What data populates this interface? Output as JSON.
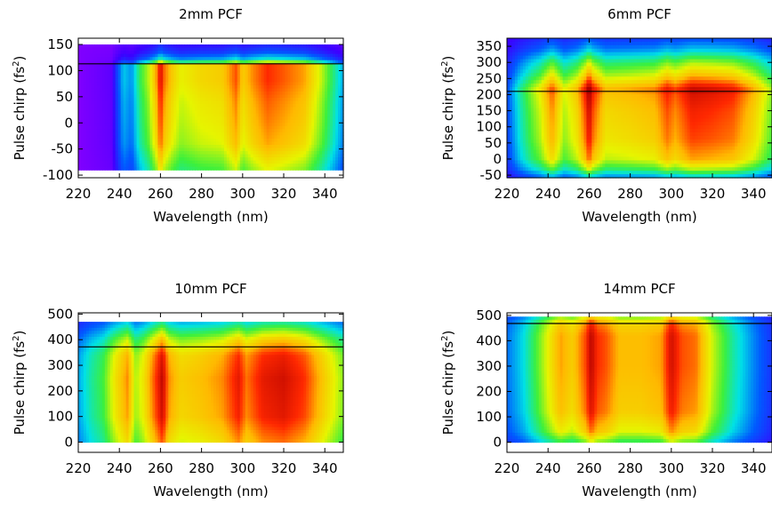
{
  "figure": {
    "background": "#ffffff"
  },
  "chart_data": [
    {
      "type": "heatmap",
      "title": "2mm PCF",
      "xlabel": "Wavelength (nm)",
      "ylabel_main": "Pulse chirp (fs",
      "ylabel_sup": "2",
      "ylabel_end": ")",
      "xlim": [
        220,
        349
      ],
      "ylim": [
        -105,
        162
      ],
      "data_yrange": [
        -90,
        150
      ],
      "x_ticks": [
        220,
        240,
        260,
        280,
        300,
        320,
        340
      ],
      "y_ticks": [
        -100,
        -50,
        0,
        50,
        100,
        150
      ],
      "reference_line_y": 113,
      "background_level": 0.02,
      "columns": [
        {
          "x": 220,
          "v": 0.02
        },
        {
          "x": 228,
          "v": 0.05
        },
        {
          "x": 236,
          "v": 0.08
        },
        {
          "x": 238,
          "v": 0.2
        },
        {
          "x": 242,
          "v": 0.38
        },
        {
          "x": 246,
          "v": 0.33
        },
        {
          "x": 250,
          "v": 0.5
        },
        {
          "x": 254,
          "v": 0.6
        },
        {
          "x": 258,
          "v": 0.78
        },
        {
          "x": 260,
          "v": 0.95
        },
        {
          "x": 262,
          "v": 0.82
        },
        {
          "x": 266,
          "v": 0.72
        },
        {
          "x": 270,
          "v": 0.65
        },
        {
          "x": 280,
          "v": 0.7
        },
        {
          "x": 290,
          "v": 0.72
        },
        {
          "x": 297,
          "v": 0.85
        },
        {
          "x": 300,
          "v": 0.72
        },
        {
          "x": 305,
          "v": 0.8
        },
        {
          "x": 312,
          "v": 0.88
        },
        {
          "x": 320,
          "v": 0.84
        },
        {
          "x": 330,
          "v": 0.78
        },
        {
          "x": 338,
          "v": 0.62
        },
        {
          "x": 344,
          "v": 0.48
        },
        {
          "x": 349,
          "v": 0.35
        }
      ],
      "rows": [
        {
          "y": -90,
          "v": 0.72
        },
        {
          "y": -40,
          "v": 0.88
        },
        {
          "y": 0,
          "v": 0.92
        },
        {
          "y": 40,
          "v": 0.95
        },
        {
          "y": 80,
          "v": 1.0
        },
        {
          "y": 112,
          "v": 1.0
        },
        {
          "y": 120,
          "v": 0.5
        },
        {
          "y": 135,
          "v": 0.3
        },
        {
          "y": 150,
          "v": 0.2
        }
      ]
    },
    {
      "type": "heatmap",
      "title": "6mm PCF",
      "xlabel": "Wavelength (nm)",
      "ylabel_main": "Pulse chirp (fs",
      "ylabel_sup": "2",
      "ylabel_end": ")",
      "xlim": [
        220,
        349
      ],
      "ylim": [
        -58,
        375
      ],
      "data_yrange": [
        -58,
        375
      ],
      "x_ticks": [
        220,
        240,
        260,
        280,
        300,
        320,
        340
      ],
      "y_ticks": [
        -50,
        0,
        50,
        100,
        150,
        200,
        250,
        300,
        350
      ],
      "reference_line_y": 210,
      "background_level": 0.1,
      "columns": [
        {
          "x": 220,
          "v": 0.25
        },
        {
          "x": 226,
          "v": 0.42
        },
        {
          "x": 232,
          "v": 0.55
        },
        {
          "x": 236,
          "v": 0.62
        },
        {
          "x": 242,
          "v": 0.8
        },
        {
          "x": 248,
          "v": 0.6
        },
        {
          "x": 254,
          "v": 0.7
        },
        {
          "x": 258,
          "v": 0.85
        },
        {
          "x": 260,
          "v": 0.97
        },
        {
          "x": 262,
          "v": 0.85
        },
        {
          "x": 268,
          "v": 0.7
        },
        {
          "x": 280,
          "v": 0.72
        },
        {
          "x": 292,
          "v": 0.75
        },
        {
          "x": 298,
          "v": 0.85
        },
        {
          "x": 302,
          "v": 0.8
        },
        {
          "x": 310,
          "v": 0.9
        },
        {
          "x": 320,
          "v": 0.88
        },
        {
          "x": 330,
          "v": 0.85
        },
        {
          "x": 340,
          "v": 0.72
        },
        {
          "x": 349,
          "v": 0.55
        }
      ],
      "rows": [
        {
          "y": -58,
          "v": 0.35
        },
        {
          "y": -30,
          "v": 0.65
        },
        {
          "y": 0,
          "v": 0.85
        },
        {
          "y": 60,
          "v": 0.95
        },
        {
          "y": 150,
          "v": 1.0
        },
        {
          "y": 200,
          "v": 1.05
        },
        {
          "y": 215,
          "v": 1.1
        },
        {
          "y": 260,
          "v": 0.82
        },
        {
          "y": 300,
          "v": 0.62
        },
        {
          "y": 340,
          "v": 0.35
        },
        {
          "y": 375,
          "v": 0.2
        }
      ]
    },
    {
      "type": "heatmap",
      "title": "10mm PCF",
      "xlabel": "Wavelength (nm)",
      "ylabel_main": "Pulse chirp (fs",
      "ylabel_sup": "2",
      "ylabel_end": ")",
      "xlim": [
        220,
        349
      ],
      "ylim": [
        -40,
        505
      ],
      "data_yrange": [
        0,
        470
      ],
      "x_ticks": [
        220,
        240,
        260,
        280,
        300,
        320,
        340
      ],
      "y_ticks": [
        0,
        100,
        200,
        300,
        400,
        500
      ],
      "reference_line_y": 372,
      "background_level": 0.1,
      "columns": [
        {
          "x": 220,
          "v": 0.35
        },
        {
          "x": 226,
          "v": 0.45
        },
        {
          "x": 232,
          "v": 0.52
        },
        {
          "x": 238,
          "v": 0.68
        },
        {
          "x": 244,
          "v": 0.8
        },
        {
          "x": 248,
          "v": 0.6
        },
        {
          "x": 252,
          "v": 0.68
        },
        {
          "x": 258,
          "v": 0.88
        },
        {
          "x": 261,
          "v": 0.98
        },
        {
          "x": 264,
          "v": 0.8
        },
        {
          "x": 270,
          "v": 0.72
        },
        {
          "x": 280,
          "v": 0.75
        },
        {
          "x": 290,
          "v": 0.8
        },
        {
          "x": 298,
          "v": 0.92
        },
        {
          "x": 302,
          "v": 0.82
        },
        {
          "x": 310,
          "v": 0.92
        },
        {
          "x": 320,
          "v": 0.95
        },
        {
          "x": 330,
          "v": 0.88
        },
        {
          "x": 340,
          "v": 0.72
        },
        {
          "x": 349,
          "v": 0.58
        }
      ],
      "rows": [
        {
          "y": 0,
          "v": 0.85
        },
        {
          "y": 100,
          "v": 0.97
        },
        {
          "y": 250,
          "v": 1.0
        },
        {
          "y": 340,
          "v": 0.95
        },
        {
          "y": 400,
          "v": 0.75
        },
        {
          "y": 440,
          "v": 0.55
        },
        {
          "y": 470,
          "v": 0.4
        }
      ]
    },
    {
      "type": "heatmap",
      "title": "14mm PCF",
      "xlabel": "Wavelength (nm)",
      "ylabel_main": "Pulse chirp (fs",
      "ylabel_sup": "2",
      "ylabel_end": ")",
      "xlim": [
        220,
        349
      ],
      "ylim": [
        -40,
        510
      ],
      "data_yrange": [
        0,
        495
      ],
      "x_ticks": [
        220,
        240,
        260,
        280,
        300,
        320,
        340
      ],
      "y_ticks": [
        0,
        100,
        200,
        300,
        400,
        500
      ],
      "reference_line_y": 468,
      "background_level": 0.1,
      "columns": [
        {
          "x": 220,
          "v": 0.3
        },
        {
          "x": 228,
          "v": 0.4
        },
        {
          "x": 234,
          "v": 0.52
        },
        {
          "x": 240,
          "v": 0.65
        },
        {
          "x": 246,
          "v": 0.78
        },
        {
          "x": 252,
          "v": 0.72
        },
        {
          "x": 258,
          "v": 0.85
        },
        {
          "x": 261,
          "v": 0.98
        },
        {
          "x": 264,
          "v": 0.88
        },
        {
          "x": 268,
          "v": 0.85
        },
        {
          "x": 275,
          "v": 0.75
        },
        {
          "x": 285,
          "v": 0.75
        },
        {
          "x": 295,
          "v": 0.78
        },
        {
          "x": 300,
          "v": 0.95
        },
        {
          "x": 305,
          "v": 0.85
        },
        {
          "x": 312,
          "v": 0.82
        },
        {
          "x": 320,
          "v": 0.62
        },
        {
          "x": 330,
          "v": 0.45
        },
        {
          "x": 340,
          "v": 0.32
        },
        {
          "x": 349,
          "v": 0.22
        }
      ],
      "rows": [
        {
          "y": 0,
          "v": 0.6
        },
        {
          "y": 40,
          "v": 0.82
        },
        {
          "y": 120,
          "v": 0.95
        },
        {
          "y": 300,
          "v": 1.0
        },
        {
          "y": 420,
          "v": 1.0
        },
        {
          "y": 470,
          "v": 0.92
        },
        {
          "y": 495,
          "v": 0.7
        }
      ]
    }
  ]
}
